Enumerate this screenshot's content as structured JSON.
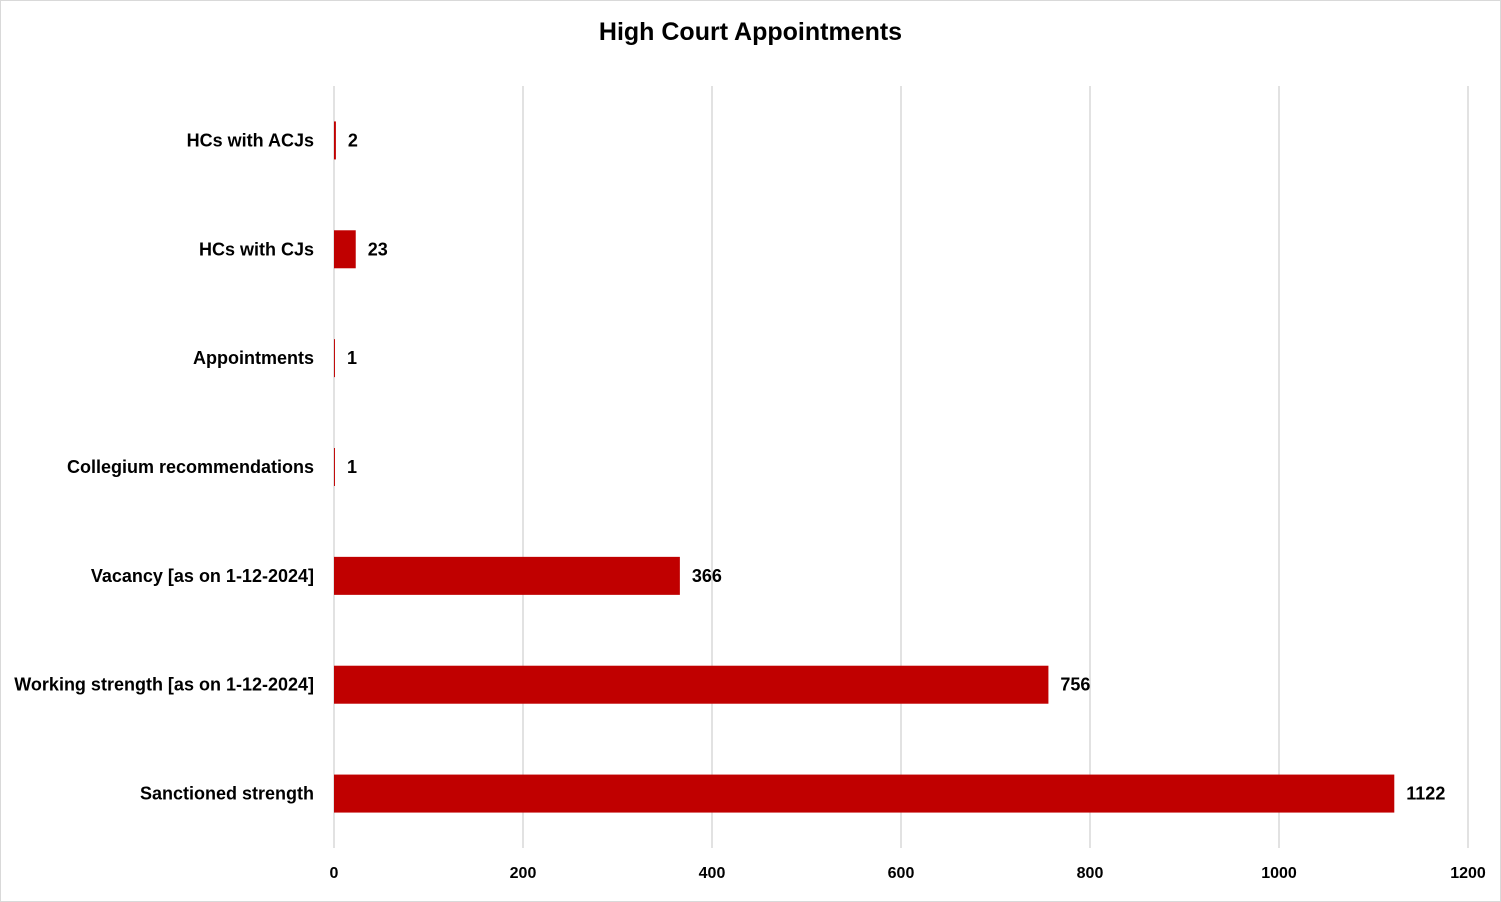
{
  "chart_data": {
    "type": "bar",
    "orientation": "horizontal",
    "title": "High Court Appointments",
    "xlabel": "",
    "ylabel": "",
    "categories": [
      "Sanctioned strength",
      "Working strength [as on 1-12-2024]",
      "Vacancy [as on 1-12-2024]",
      "Collegium recommendations",
      "Appointments",
      "HCs with CJs",
      "HCs with ACJs"
    ],
    "values": [
      1122,
      756,
      366,
      1,
      1,
      23,
      2
    ],
    "data_labels": [
      "1122",
      "756",
      "366",
      "1",
      "1",
      "23",
      "2"
    ],
    "xlim": [
      0,
      1200
    ],
    "xticks": [
      0,
      200,
      400,
      600,
      800,
      1000,
      1200
    ],
    "xtick_labels": [
      "0",
      "200",
      "400",
      "600",
      "800",
      "1000",
      "1200"
    ],
    "grid": "vertical",
    "legend": "none",
    "bar_color": "#C00000",
    "grid_color": "#d9d9d9"
  }
}
